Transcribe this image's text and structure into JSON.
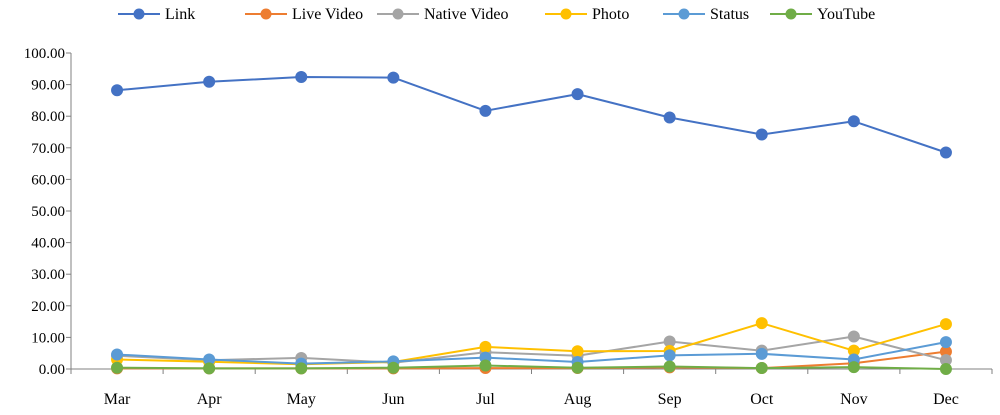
{
  "chart_data": {
    "type": "line",
    "categories": [
      "Mar",
      "Apr",
      "May",
      "Jun",
      "Jul",
      "Aug",
      "Sep",
      "Oct",
      "Nov",
      "Dec"
    ],
    "ylim": [
      0,
      100
    ],
    "yticks": [
      "0.00",
      "10.00",
      "20.00",
      "30.00",
      "40.00",
      "50.00",
      "60.00",
      "70.00",
      "80.00",
      "90.00",
      "100.00"
    ],
    "grid": false,
    "legend_position": "top",
    "series": [
      {
        "name": "Link",
        "color": "#4472C4",
        "values": [
          88.2,
          90.9,
          92.4,
          92.2,
          81.7,
          87.0,
          79.6,
          74.2,
          78.4,
          68.5
        ]
      },
      {
        "name": "Live Video",
        "color": "#ED7D31",
        "values": [
          0.2,
          0.2,
          0.2,
          0.2,
          0.3,
          0.3,
          0.5,
          0.3,
          1.8,
          5.5
        ]
      },
      {
        "name": "Native Video",
        "color": "#A5A5A5",
        "values": [
          4.2,
          2.8,
          3.5,
          2.0,
          5.3,
          4.2,
          8.7,
          5.8,
          10.3,
          2.8
        ]
      },
      {
        "name": "Photo",
        "color": "#FFC000",
        "values": [
          3.0,
          2.3,
          1.5,
          2.2,
          7.0,
          5.6,
          5.7,
          14.5,
          5.8,
          14.2
        ]
      },
      {
        "name": "Status",
        "color": "#5B9BD5",
        "values": [
          4.6,
          3.0,
          1.7,
          2.4,
          3.6,
          2.2,
          4.3,
          4.8,
          3.0,
          8.5
        ]
      },
      {
        "name": "YouTube",
        "color": "#70AD47",
        "values": [
          0.4,
          0.2,
          0.2,
          0.4,
          1.1,
          0.4,
          0.8,
          0.3,
          0.6,
          0.0
        ]
      }
    ]
  }
}
